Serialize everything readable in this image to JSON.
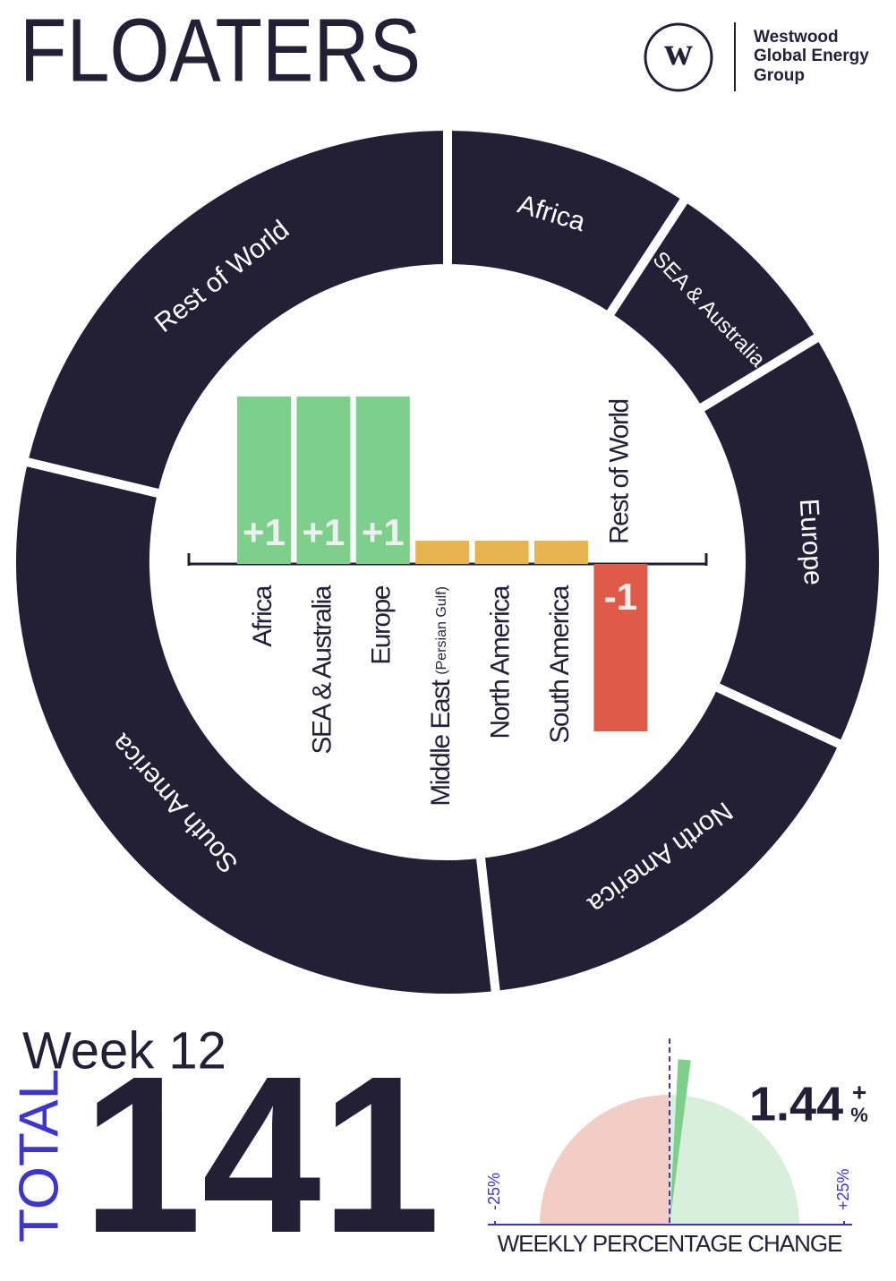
{
  "header": {
    "title": "FLOATERS",
    "logo_mark": "w",
    "company": [
      "Westwood",
      "Global Energy",
      "Group"
    ]
  },
  "chart_data": [
    {
      "type": "donut",
      "categories": [
        "Africa",
        "SEA & Australia",
        "Europe",
        "North America",
        "South America",
        "Rest of World"
      ],
      "values": [
        13,
        10,
        22,
        23,
        43,
        30
      ],
      "color": "#231f35"
    },
    {
      "type": "bar",
      "categories": [
        "Africa",
        "SEA & Australia",
        "Europe",
        "Middle East (Persian Gulf)",
        "North America",
        "South America",
        "Rest of World"
      ],
      "values": [
        1,
        1,
        1,
        0,
        0,
        0,
        -1
      ],
      "value_labels": [
        "+1",
        "+1",
        "+1",
        null,
        null,
        null,
        "-1"
      ],
      "colors": {
        "positive": "#7dcf8b",
        "zero": "#e8b44f",
        "negative": "#df5a48"
      },
      "ylim": [
        -1,
        1
      ]
    },
    {
      "type": "gauge",
      "title": "WEEKLY PERCENTAGE CHANGE",
      "value": 1.44,
      "value_label": "1.44",
      "value_suffix": [
        "+",
        "%"
      ],
      "xlim": [
        -25,
        25
      ],
      "xticks": [
        {
          "value": -25,
          "label": "-25%"
        },
        {
          "value": 25,
          "label": "+25%"
        }
      ],
      "colors": {
        "negative": "#f2cdc6",
        "positive": "#d8f0db",
        "needle": "#7dcf8b",
        "axis": "#3d36c8"
      }
    }
  ],
  "summary": {
    "week": "Week 12",
    "total_label": "TOTAL",
    "total": 141
  }
}
